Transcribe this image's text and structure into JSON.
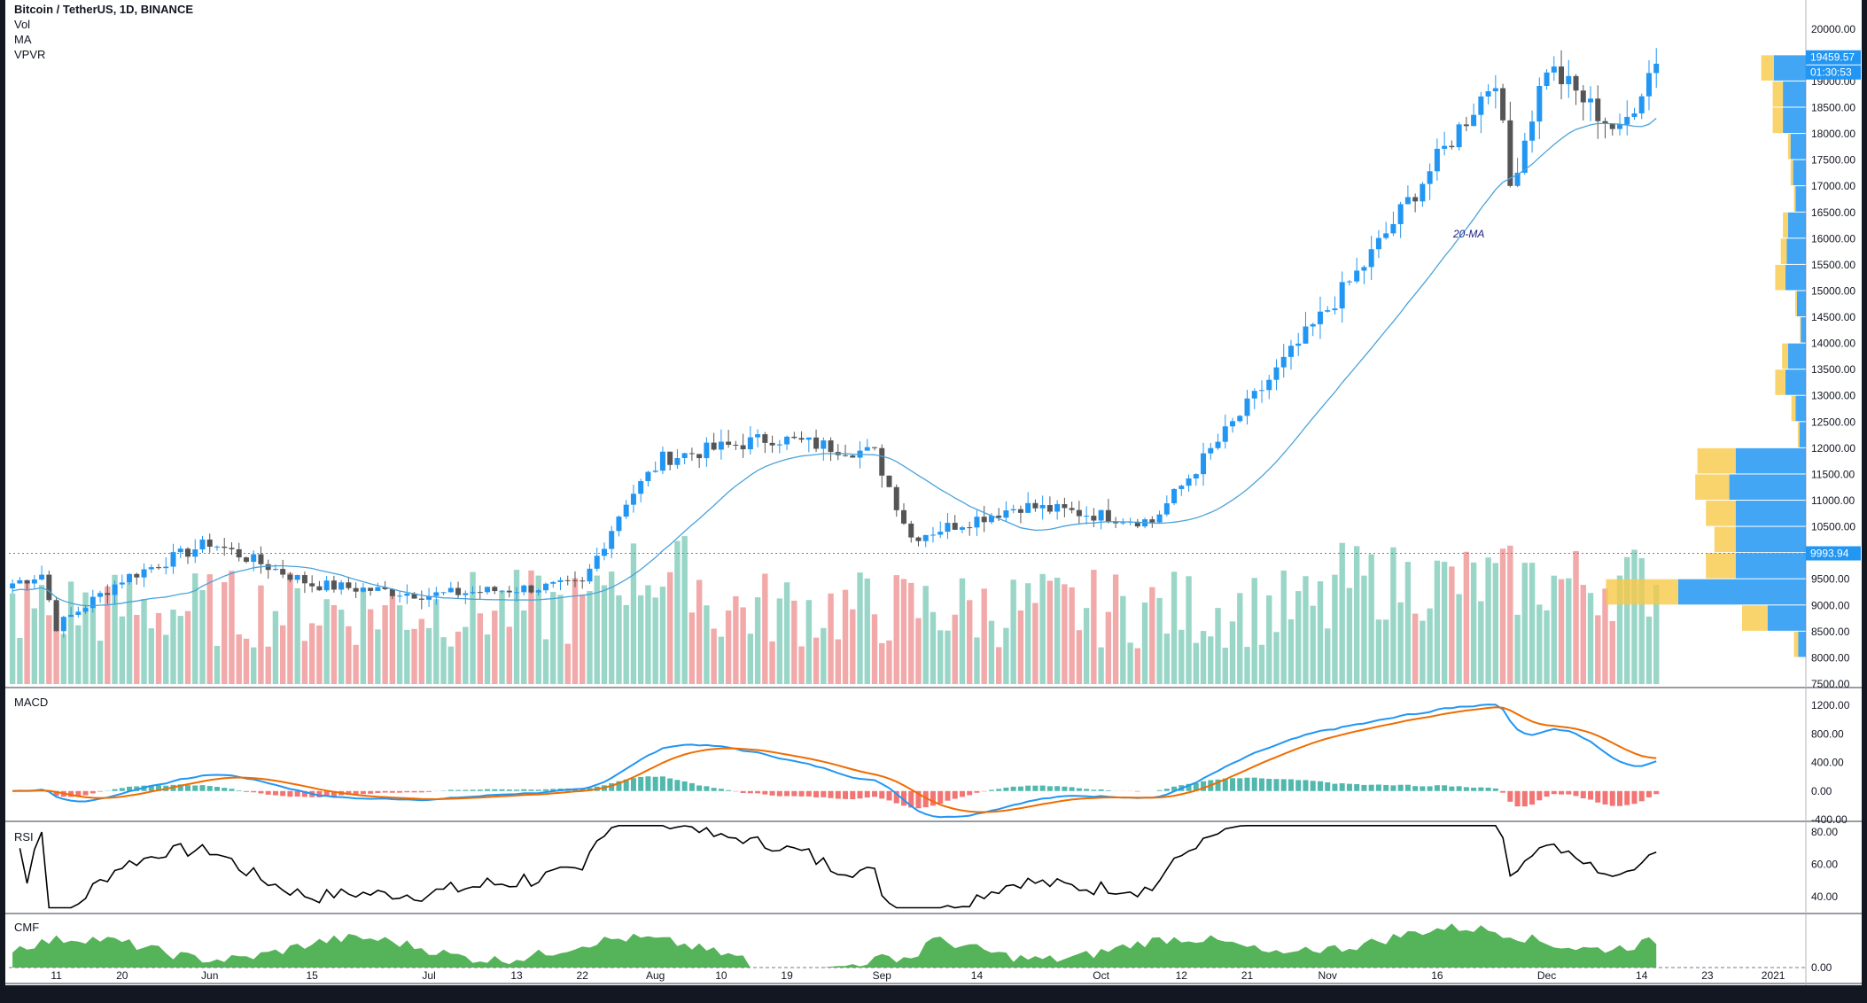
{
  "header": {
    "symbol": "Bitcoin / TetherUS, 1D, BINANCE",
    "indicators": [
      "Vol",
      "MA",
      "VPVR"
    ]
  },
  "panes": {
    "macd_label": "MACD",
    "rsi_label": "RSI",
    "cmf_label": "CMF"
  },
  "annotations": {
    "ma_label": "20-MA",
    "last_price": "19459.57",
    "countdown": "01:30:53",
    "line_price": "9993.94"
  },
  "colors": {
    "up": "#2196f3",
    "down": "#555555",
    "vol_up": "#8fd1c2",
    "vol_down": "#f0a0a0",
    "ma": "#4ba3d9",
    "macd_line": "#2196f3",
    "signal_line": "#ef6c00",
    "rsi_line": "#000000",
    "cmf_fill": "#4caf50",
    "vpvr_up": "#f7c948",
    "vpvr_down": "#2196f3"
  },
  "chart_data": {
    "type": "candlestick",
    "title": "Bitcoin / TetherUS, 1D, BINANCE",
    "x_tick_labels": [
      "11",
      "20",
      "Jun",
      "15",
      "Jul",
      "13",
      "22",
      "Aug",
      "10",
      "19",
      "Sep",
      "14",
      "Oct",
      "12",
      "21",
      "Nov",
      "16",
      "Dec",
      "14",
      "23",
      "2021"
    ],
    "price_axis": {
      "ticks": [
        "20000.00",
        "19500.00",
        "19000.00",
        "18500.00",
        "18000.00",
        "17500.00",
        "17000.00",
        "16500.00",
        "16000.00",
        "15500.00",
        "15000.00",
        "14500.00",
        "14000.00",
        "13500.00",
        "13000.00",
        "12500.00",
        "12000.00",
        "11500.00",
        "11000.00",
        "10500.00",
        "10000.00",
        "9500.00",
        "9000.00",
        "8500.00",
        "8000.00",
        "7500.00"
      ],
      "range": [
        7500,
        20250
      ]
    },
    "price_keypoints": [
      {
        "date": "2020-05-09",
        "close": 9600
      },
      {
        "date": "2020-05-11",
        "close": 8600
      },
      {
        "date": "2020-05-20",
        "close": 9500
      },
      {
        "date": "2020-06-01",
        "close": 10200
      },
      {
        "date": "2020-06-15",
        "close": 9400
      },
      {
        "date": "2020-07-01",
        "close": 9200
      },
      {
        "date": "2020-07-22",
        "close": 9400
      },
      {
        "date": "2020-07-28",
        "close": 11000
      },
      {
        "date": "2020-08-02",
        "close": 11800
      },
      {
        "date": "2020-08-17",
        "close": 12200
      },
      {
        "date": "2020-08-31",
        "close": 11900
      },
      {
        "date": "2020-09-05",
        "close": 10300
      },
      {
        "date": "2020-09-20",
        "close": 10900
      },
      {
        "date": "2020-10-08",
        "close": 10600
      },
      {
        "date": "2020-10-21",
        "close": 12800
      },
      {
        "date": "2020-11-06",
        "close": 15500
      },
      {
        "date": "2020-11-24",
        "close": 19100
      },
      {
        "date": "2020-11-26",
        "close": 17000
      },
      {
        "date": "2020-12-01",
        "close": 19300
      },
      {
        "date": "2020-12-11",
        "close": 18000
      },
      {
        "date": "2020-12-16",
        "close": 19459.57
      }
    ],
    "vpvr_bins": [
      {
        "price": 19250,
        "up": 0.15,
        "down": 0.25
      },
      {
        "price": 18750,
        "up": 0.12,
        "down": 0.18
      },
      {
        "price": 18250,
        "up": 0.12,
        "down": 0.18
      },
      {
        "price": 17750,
        "up": 0.03,
        "down": 0.12
      },
      {
        "price": 17250,
        "up": 0.03,
        "down": 0.1
      },
      {
        "price": 16750,
        "up": 0.02,
        "down": 0.08
      },
      {
        "price": 16250,
        "up": 0.06,
        "down": 0.14
      },
      {
        "price": 15750,
        "up": 0.07,
        "down": 0.15
      },
      {
        "price": 15250,
        "up": 0.12,
        "down": 0.16
      },
      {
        "price": 14750,
        "up": 0.02,
        "down": 0.07
      },
      {
        "price": 14250,
        "up": 0.01,
        "down": 0.04
      },
      {
        "price": 13750,
        "up": 0.07,
        "down": 0.14
      },
      {
        "price": 13250,
        "up": 0.12,
        "down": 0.16
      },
      {
        "price": 12750,
        "up": 0.05,
        "down": 0.08
      },
      {
        "price": 12250,
        "up": 0.02,
        "down": 0.05
      },
      {
        "price": 11750,
        "up": 0.45,
        "down": 0.55
      },
      {
        "price": 11250,
        "up": 0.4,
        "down": 0.6
      },
      {
        "price": 10750,
        "up": 0.35,
        "down": 0.55
      },
      {
        "price": 10250,
        "up": 0.25,
        "down": 0.55
      },
      {
        "price": 9750,
        "up": 0.35,
        "down": 0.55
      },
      {
        "price": 9250,
        "up": 0.85,
        "down": 1.0
      },
      {
        "price": 8750,
        "up": 0.3,
        "down": 0.3
      },
      {
        "price": 8250,
        "up": 0.05,
        "down": 0.06
      }
    ],
    "macd_axis": {
      "ticks": [
        "1200.00",
        "800.00",
        "400.00",
        "0.00",
        "-400.00"
      ],
      "range": [
        -400,
        1400
      ]
    },
    "rsi_axis": {
      "ticks": [
        "80.00",
        "60.00",
        "40.00"
      ],
      "range": [
        30,
        85
      ]
    },
    "cmf_axis": {
      "ticks": [
        "0.00"
      ]
    }
  }
}
